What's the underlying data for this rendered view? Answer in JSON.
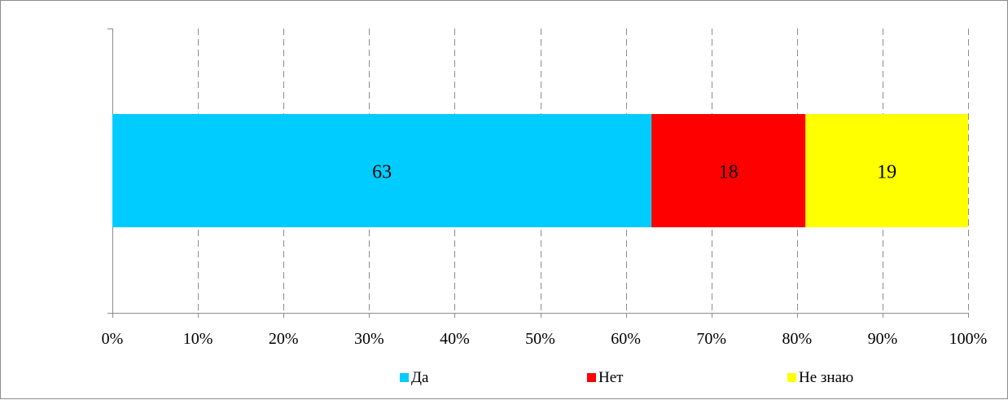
{
  "chart_data": {
    "type": "bar",
    "orientation": "horizontal",
    "stacked": "percent",
    "categories": [
      ""
    ],
    "series": [
      {
        "name": "Да",
        "values": [
          63
        ],
        "color": "#00CCFF"
      },
      {
        "name": "Нет",
        "values": [
          18
        ],
        "color": "#FF0000"
      },
      {
        "name": "Не знаю",
        "values": [
          19
        ],
        "color": "#FFFF00"
      }
    ],
    "xlim": [
      0,
      100
    ],
    "x_ticks": [
      0,
      10,
      20,
      30,
      40,
      50,
      60,
      70,
      80,
      90,
      100
    ],
    "x_tick_labels": [
      "0%",
      "10%",
      "20%",
      "30%",
      "40%",
      "50%",
      "60%",
      "70%",
      "80%",
      "90%",
      "100%"
    ],
    "data_labels": [
      "63",
      "18",
      "19"
    ],
    "grid": "vertical-dashed",
    "legend_position": "bottom"
  }
}
